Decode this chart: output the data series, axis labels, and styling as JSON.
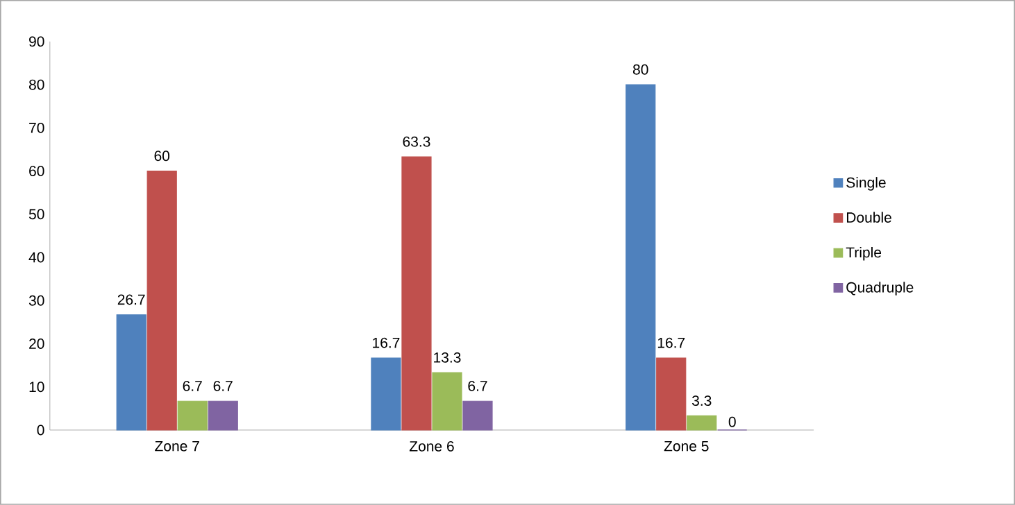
{
  "chart_data": {
    "type": "bar",
    "categories": [
      "Zone 7",
      "Zone 6",
      "Zone 5"
    ],
    "series": [
      {
        "name": "Single",
        "color": "#4f81bd",
        "values": [
          26.7,
          16.7,
          80
        ]
      },
      {
        "name": "Double",
        "color": "#c0504d",
        "values": [
          60,
          63.3,
          16.7
        ]
      },
      {
        "name": "Triple",
        "color": "#9bbb59",
        "values": [
          6.7,
          13.3,
          3.3
        ]
      },
      {
        "name": "Quadruple",
        "color": "#8064a2",
        "values": [
          6.7,
          6.7,
          0
        ]
      }
    ],
    "ylim": [
      0,
      90
    ],
    "yticks": [
      0,
      10,
      20,
      30,
      40,
      50,
      60,
      70,
      80,
      90
    ],
    "data_labels": true,
    "grid": false,
    "legend": "right"
  }
}
